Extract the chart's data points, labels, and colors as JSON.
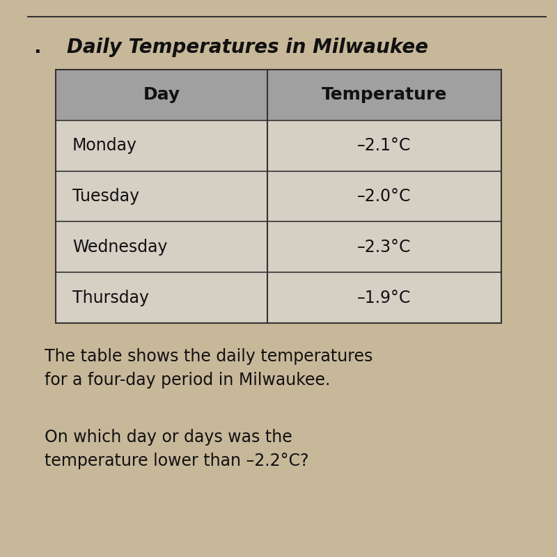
{
  "title": "Daily Temperatures in Milwaukee",
  "title_prefix": ".",
  "col_headers": [
    "Day",
    "Temperature"
  ],
  "rows": [
    [
      "Monday",
      "–2.1°C"
    ],
    [
      "Tuesday",
      "–2.0°C"
    ],
    [
      "Wednesday",
      "–2.3°C"
    ],
    [
      "Thursday",
      "–1.9°C"
    ]
  ],
  "paragraph1": "The table shows the daily temperatures\nfor a four-day period in Milwaukee.",
  "paragraph2": "On which day or days was the\ntemperature lower than –2.2°C?",
  "bg_color": "#c8b89a",
  "header_bg": "#a0a0a0",
  "table_bg": "#d6cfc4",
  "text_color": "#111111",
  "line_color": "#333333",
  "top_line_color": "#333333",
  "title_fontsize": 20,
  "header_fontsize": 18,
  "cell_fontsize": 17,
  "body_fontsize": 17
}
